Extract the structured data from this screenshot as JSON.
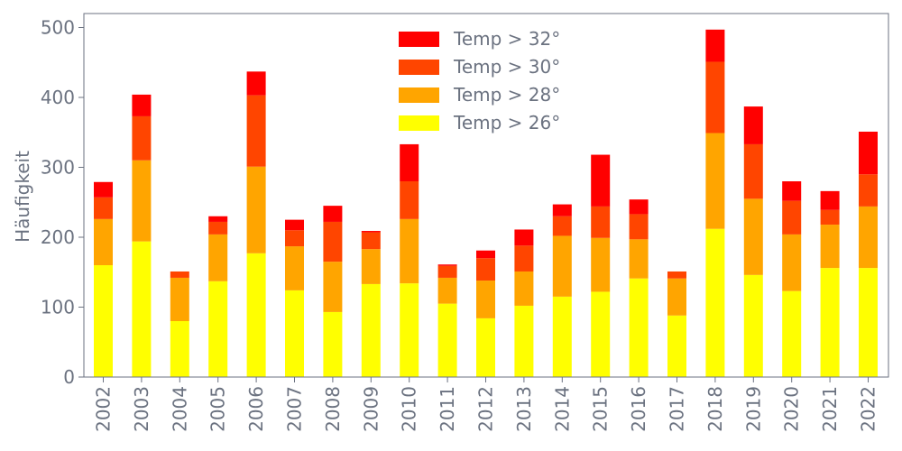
{
  "chart_data": {
    "type": "bar",
    "stacked": true,
    "categories": [
      "2002",
      "2003",
      "2004",
      "2005",
      "2006",
      "2007",
      "2008",
      "2009",
      "2010",
      "2011",
      "2012",
      "2013",
      "2014",
      "2015",
      "2016",
      "2017",
      "2018",
      "2019",
      "2020",
      "2021",
      "2022"
    ],
    "series": [
      {
        "name": "Temp > 26°",
        "color": "#ffff00",
        "values": [
          160,
          194,
          80,
          137,
          177,
          124,
          93,
          133,
          134,
          105,
          84,
          102,
          115,
          122,
          141,
          88,
          212,
          146,
          123,
          156,
          156
        ]
      },
      {
        "name": "Temp > 28°",
        "color": "#ffa500",
        "values": [
          66,
          116,
          62,
          67,
          124,
          63,
          72,
          50,
          92,
          37,
          54,
          49,
          87,
          77,
          56,
          53,
          137,
          109,
          81,
          62,
          88
        ]
      },
      {
        "name": "Temp > 30°",
        "color": "#ff4500",
        "values": [
          31,
          63,
          9,
          18,
          102,
          23,
          57,
          24,
          54,
          17,
          32,
          37,
          28,
          45,
          36,
          10,
          102,
          78,
          48,
          21,
          46
        ]
      },
      {
        "name": "Temp > 32°",
        "color": "#ff0000",
        "values": [
          22,
          31,
          0,
          8,
          34,
          15,
          23,
          2,
          53,
          2,
          11,
          23,
          17,
          74,
          21,
          0,
          46,
          54,
          28,
          27,
          61
        ]
      }
    ],
    "xlabel": "",
    "ylabel": "Häufigkeit",
    "ylim": [
      0,
      520
    ],
    "yticks": [
      0,
      100,
      200,
      300,
      400,
      500
    ],
    "legend_position": "top-center",
    "grid": false
  }
}
